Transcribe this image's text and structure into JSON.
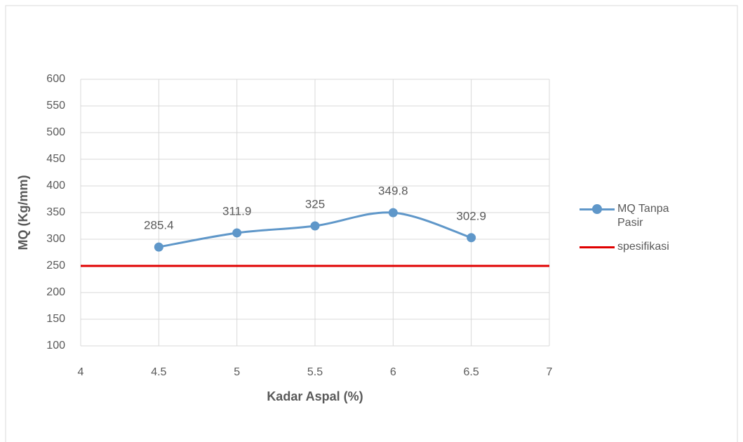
{
  "chart_data": {
    "type": "line",
    "x_label": "Kadar Aspal (%)",
    "y_label": "MQ (Kg/mm)",
    "series": [
      {
        "name": "MQ Tanpa Pasir",
        "color": "#5f97c9",
        "markers": true,
        "data_labels": true,
        "x": [
          4.5,
          5,
          5.5,
          6,
          6.5
        ],
        "values": [
          285.4,
          311.9,
          325,
          349.8,
          302.9
        ]
      },
      {
        "name": "spesifikasi",
        "color": "#e00000",
        "markers": false,
        "data_labels": false,
        "x": [
          4,
          7
        ],
        "values": [
          250,
          250
        ]
      }
    ],
    "xlim": [
      4,
      7
    ],
    "xticks": [
      4,
      4.5,
      5,
      5.5,
      6,
      6.5,
      7
    ],
    "ylim": [
      100,
      600
    ],
    "yticks": [
      100,
      150,
      200,
      250,
      300,
      350,
      400,
      450,
      500,
      550,
      600
    ],
    "grid": true,
    "legend": "right"
  }
}
